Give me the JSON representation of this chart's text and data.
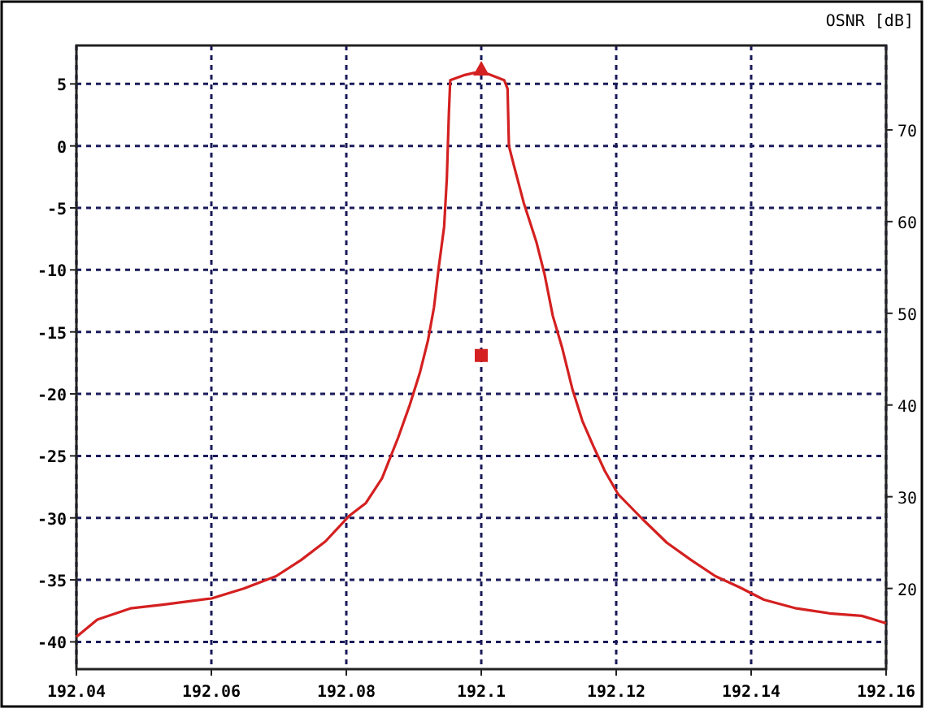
{
  "chart_data": {
    "type": "line",
    "y2label": "OSNR [dB]",
    "xlim": [
      192.04,
      192.16
    ],
    "xticks": [
      {
        "value": 192.04,
        "label": "192.04"
      },
      {
        "value": 192.06,
        "label": "192.06"
      },
      {
        "value": 192.08,
        "label": "192.08"
      },
      192.1,
      192.12,
      192.14,
      192.16
    ],
    "ylim": [
      -42.2,
      8.1
    ],
    "yticks": [
      5,
      0,
      -5,
      -10,
      -15,
      -20,
      -25,
      -30,
      -35,
      -40
    ],
    "y2lim": [
      11.2,
      79.2
    ],
    "y2ticks": [
      20,
      30,
      40,
      50,
      60,
      70
    ],
    "grid": true,
    "line_style": "solid",
    "series": [
      {
        "color": "#d42020",
        "x": [
          192.04,
          192.0431,
          192.048,
          192.0528,
          192.06,
          192.0648,
          192.0696,
          192.0733,
          192.0769,
          192.0805,
          192.0829,
          192.0853,
          192.0877,
          192.0894,
          192.0909,
          192.0921,
          192.093,
          192.0937,
          192.0945,
          192.0949,
          192.0952,
          192.0954,
          192.0974,
          192.099,
          192.101,
          192.1034,
          192.1039,
          192.1041,
          192.1048,
          192.1063,
          192.1082,
          192.1094,
          192.1106,
          192.112,
          192.1135,
          192.115,
          192.1166,
          192.1183,
          192.1203,
          192.1239,
          192.1275,
          192.1311,
          192.1347,
          192.1383,
          192.1419,
          192.1467,
          192.1516,
          192.1564,
          192.16
        ],
        "values": [
          -39.6,
          -38.2,
          -37.3,
          -37,
          -36.5,
          -35.7,
          -34.7,
          -33.4,
          -31.9,
          -29.8,
          -28.8,
          -26.8,
          -23.5,
          -20.9,
          -18.3,
          -15.7,
          -13,
          -9.8,
          -6.5,
          -2.6,
          2.6,
          5.3,
          5.7,
          5.9,
          5.8,
          5.3,
          4.6,
          0,
          -1.5,
          -4.6,
          -7.8,
          -10.4,
          -13.7,
          -16.3,
          -19.6,
          -22.2,
          -24.2,
          -26.2,
          -28.1,
          -30.1,
          -32,
          -33.4,
          -34.7,
          -35.6,
          -36.6,
          -37.3,
          -37.7,
          -37.9,
          -38.5
        ]
      },
      {
        "type": "scatter",
        "color": "#d42020",
        "marker": "triangle",
        "x": [
          192.1
        ],
        "values": [
          6.2
        ]
      },
      {
        "type": "scatter",
        "color": "#d42020",
        "marker": "square",
        "axis": "y2",
        "x": [
          192.1
        ],
        "values": [
          45.4
        ]
      }
    ]
  }
}
